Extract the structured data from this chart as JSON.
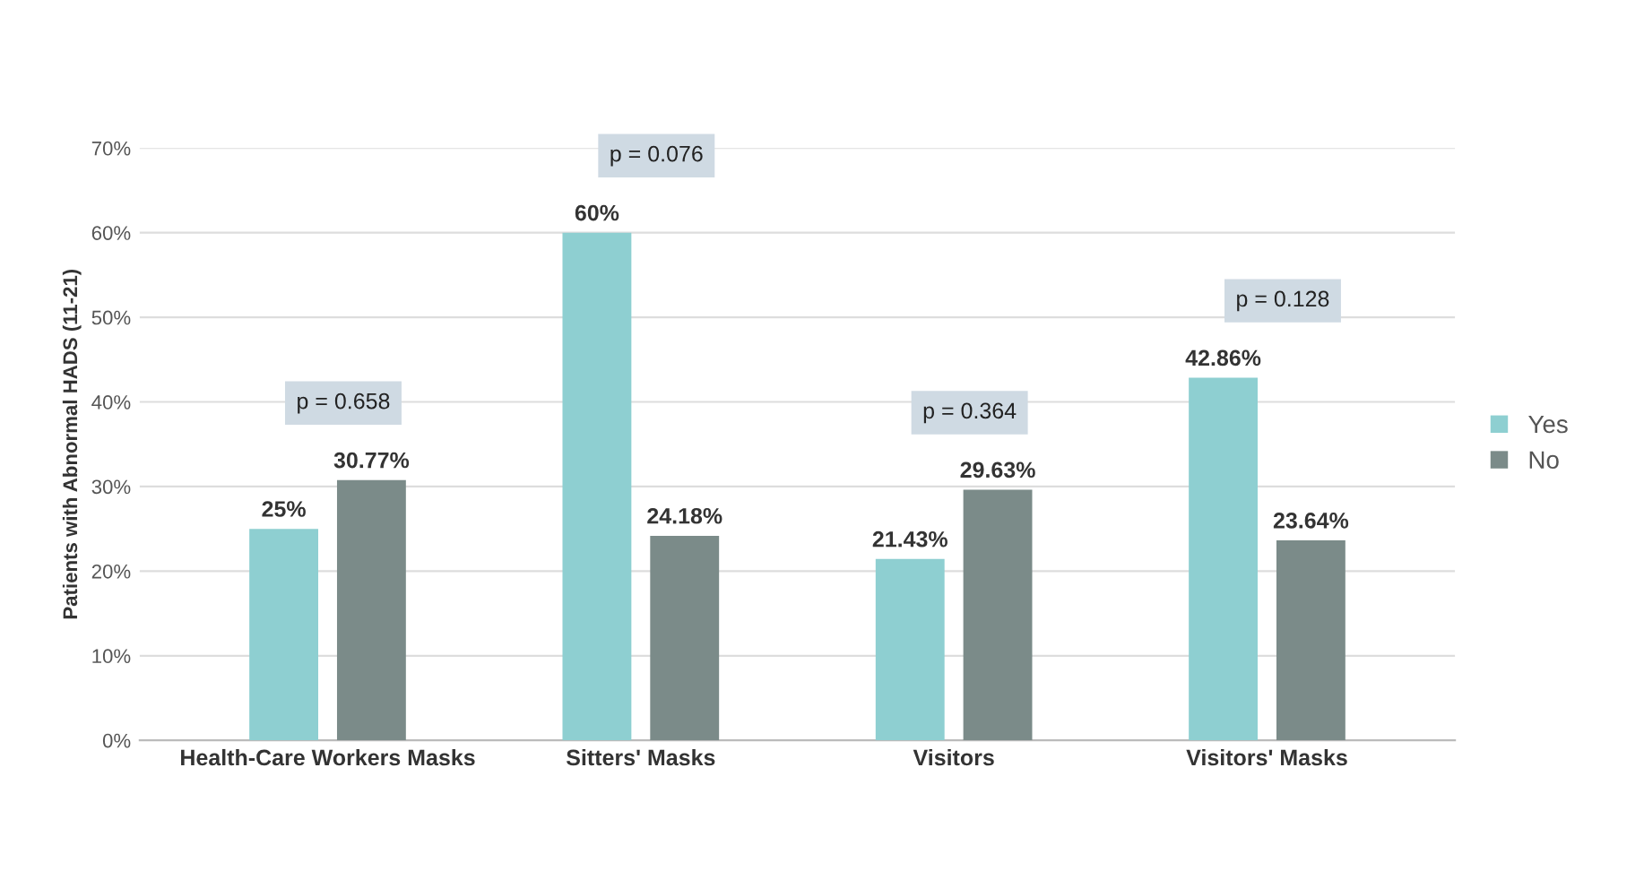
{
  "chart_data": {
    "type": "bar",
    "ylabel": "Patients with Abnormal HADS (11-21)",
    "categories": [
      "Health-Care Workers Masks",
      "Sitters' Masks",
      "Visitors",
      "Visitors' Masks"
    ],
    "series": [
      {
        "name": "Yes",
        "color": "#8ecfd1",
        "values": [
          25,
          60,
          21.43,
          42.86
        ],
        "value_labels": [
          "25%",
          "60%",
          "21.43%",
          "42.86%"
        ]
      },
      {
        "name": "No",
        "color": "#7b8b89",
        "values": [
          30.77,
          24.18,
          29.63,
          23.64
        ],
        "value_labels": [
          "30.77%",
          "24.18%",
          "29.63%",
          "23.64%"
        ]
      }
    ],
    "ylim": [
      0,
      70
    ],
    "yticks": [
      {
        "value": 0,
        "label": "0%"
      },
      {
        "value": 10,
        "label": "10%"
      },
      {
        "value": 20,
        "label": "20%"
      },
      {
        "value": 30,
        "label": "30%"
      },
      {
        "value": 40,
        "label": "40%"
      },
      {
        "value": 50,
        "label": "50%"
      },
      {
        "value": 60,
        "label": "60%"
      },
      {
        "value": 70,
        "label": "70%"
      }
    ],
    "grid": "y",
    "legend": "right",
    "annotations": [
      "p = 0.658",
      "p = 0.076",
      "p = 0.364",
      "p = 0.128"
    ]
  }
}
